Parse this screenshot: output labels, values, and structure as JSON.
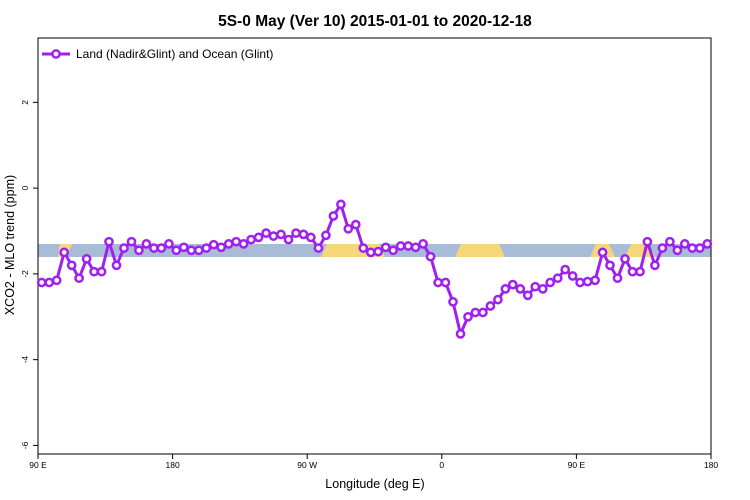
{
  "chart_data": {
    "type": "line",
    "title": "5S-0 May (Ver 10)   2015-01-01 to 2020-12-18",
    "xlabel": "Longitude (deg E)",
    "ylabel": "XCO2 - MLO trend (ppm)",
    "xlim": [
      90,
      450
    ],
    "ylim": [
      -6.2,
      3.5
    ],
    "x_ticks": [
      {
        "value": 90,
        "label": "90 E"
      },
      {
        "value": 162,
        "label": "180"
      },
      {
        "value": 234,
        "label": "90 W"
      },
      {
        "value": 306,
        "label": "0"
      },
      {
        "value": 378,
        "label": "90 E"
      },
      {
        "value": 450,
        "label": "180"
      }
    ],
    "y_ticks": [
      {
        "value": 2,
        "label": "2"
      },
      {
        "value": 0,
        "label": "0"
      },
      {
        "value": -2,
        "label": "-2"
      },
      {
        "value": -4,
        "label": "-4"
      },
      {
        "value": -6,
        "label": "-6"
      }
    ],
    "grid": false,
    "legend_position": "top-left",
    "series": [
      {
        "name": "Land (Nadir&Glint) and Ocean (Glint)",
        "color": "#a020f0",
        "marker": "open-circle",
        "x": [
          92,
          96,
          100,
          104,
          108,
          112,
          116,
          120,
          124,
          128,
          132,
          136,
          140,
          144,
          148,
          152,
          156,
          160,
          164,
          168,
          172,
          176,
          180,
          184,
          188,
          192,
          196,
          200,
          204,
          208,
          212,
          216,
          220,
          224,
          228,
          232,
          236,
          240,
          244,
          248,
          252,
          256,
          260,
          264,
          268,
          272,
          276,
          280,
          284,
          288,
          292,
          296,
          300,
          304,
          308,
          312,
          316,
          320,
          324,
          328,
          332,
          336,
          340,
          344,
          348,
          352,
          356,
          360,
          364,
          368,
          372,
          376,
          380,
          384,
          388,
          392,
          396,
          400,
          404,
          408,
          412,
          416,
          420,
          424,
          428,
          432,
          436,
          440,
          444,
          448
        ],
        "y": [
          -2.2,
          -2.2,
          -2.15,
          -1.5,
          -1.8,
          -2.1,
          -1.65,
          -1.95,
          -1.95,
          -1.25,
          -1.8,
          -1.4,
          -1.25,
          -1.45,
          -1.3,
          -1.4,
          -1.4,
          -1.3,
          -1.45,
          -1.38,
          -1.45,
          -1.45,
          -1.4,
          -1.32,
          -1.38,
          -1.3,
          -1.25,
          -1.3,
          -1.2,
          -1.15,
          -1.05,
          -1.12,
          -1.08,
          -1.2,
          -1.05,
          -1.08,
          -1.15,
          -1.4,
          -1.1,
          -0.65,
          -0.38,
          -0.95,
          -0.85,
          -1.4,
          -1.5,
          -1.48,
          -1.38,
          -1.45,
          -1.35,
          -1.35,
          -1.38,
          -1.3,
          -1.6,
          -2.2,
          -2.2,
          -2.65,
          -3.4,
          -3.0,
          -2.9,
          -2.9,
          -2.75,
          -2.6,
          -2.35,
          -2.25,
          -2.35,
          -2.5,
          -2.3,
          -2.35,
          -2.2,
          -2.1,
          -1.9,
          -2.05,
          -2.2,
          -2.18,
          -2.15,
          -1.5,
          -1.8,
          -2.1,
          -1.65,
          -1.95,
          -1.95,
          -1.25,
          -1.8,
          -1.4,
          -1.25,
          -1.45,
          -1.3,
          -1.4,
          -1.4,
          -1.3
        ]
      }
    ]
  }
}
